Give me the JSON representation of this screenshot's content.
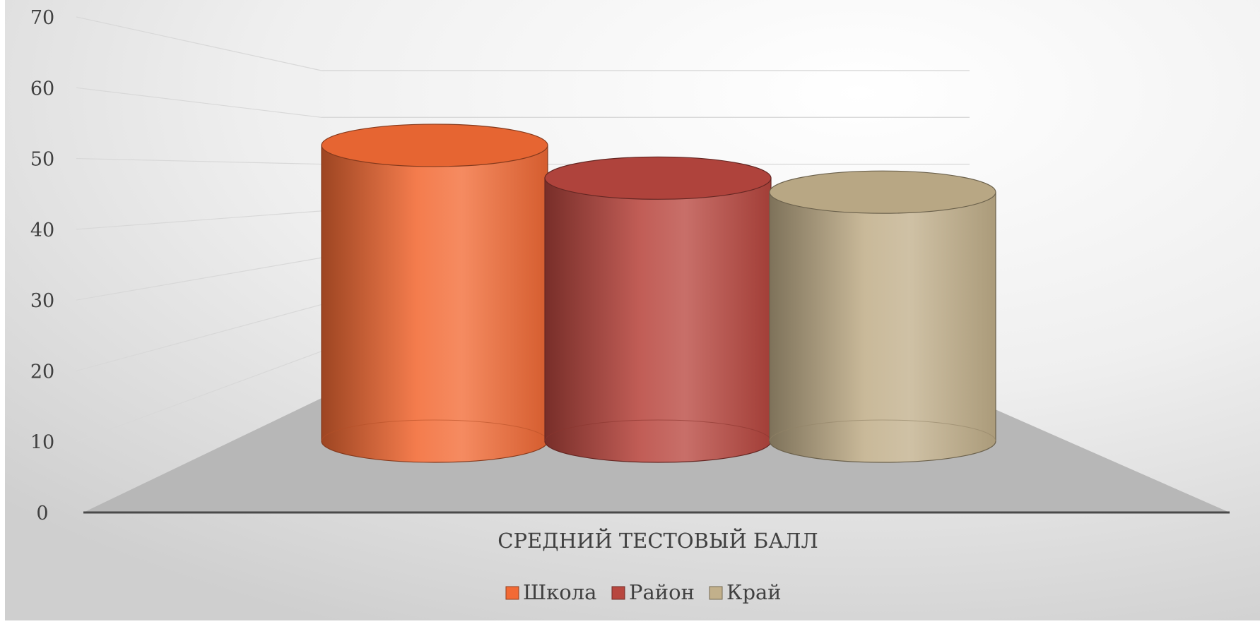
{
  "chart_data": {
    "type": "bar",
    "style": "3d-cylinder",
    "categories": [
      "СРЕДНИЙ ТЕСТОВЫЙ БАЛЛ"
    ],
    "series": [
      {
        "name": "Школа",
        "values": [
          59
        ],
        "color": "#F26A35"
      },
      {
        "name": "Район",
        "values": [
          52
        ],
        "color": "#B8473F"
      },
      {
        "name": "Край",
        "values": [
          49
        ],
        "color": "#C2B08B"
      }
    ],
    "y_ticks": [
      "0",
      "10",
      "20",
      "30",
      "40",
      "50",
      "60",
      "70"
    ],
    "ylim": [
      0,
      70
    ],
    "grid": true,
    "legend_position": "bottom",
    "title": "",
    "xlabel": "",
    "ylabel": ""
  }
}
